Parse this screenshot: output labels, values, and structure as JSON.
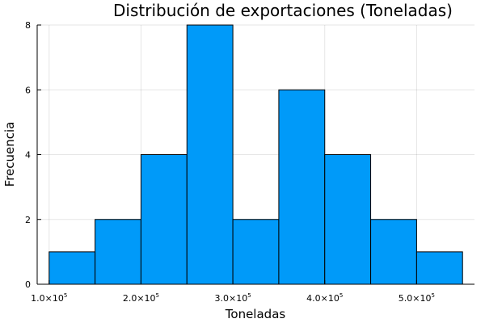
{
  "chart_data": {
    "type": "bar",
    "title": "Distribución de exportaciones (Toneladas)",
    "xlabel": "Toneladas",
    "ylabel": "Frecuencia",
    "bin_edges": [
      100000,
      150000,
      200000,
      250000,
      300000,
      350000,
      400000,
      450000,
      500000,
      550000
    ],
    "values": [
      1,
      2,
      4,
      8,
      2,
      6,
      4,
      2,
      1
    ],
    "xlim": [
      87000,
      563000
    ],
    "ylim": [
      0,
      8
    ],
    "x_ticks": [
      {
        "value": 100000,
        "mantissa": "1.0×10",
        "exponent": "5"
      },
      {
        "value": 200000,
        "mantissa": "2.0×10",
        "exponent": "5"
      },
      {
        "value": 300000,
        "mantissa": "3.0×10",
        "exponent": "5"
      },
      {
        "value": 400000,
        "mantissa": "4.0×10",
        "exponent": "5"
      },
      {
        "value": 500000,
        "mantissa": "5.0×10",
        "exponent": "5"
      }
    ],
    "y_ticks": [
      0,
      2,
      4,
      6,
      8
    ],
    "bar_color": "#009af9",
    "grid": true,
    "legend": "none"
  }
}
